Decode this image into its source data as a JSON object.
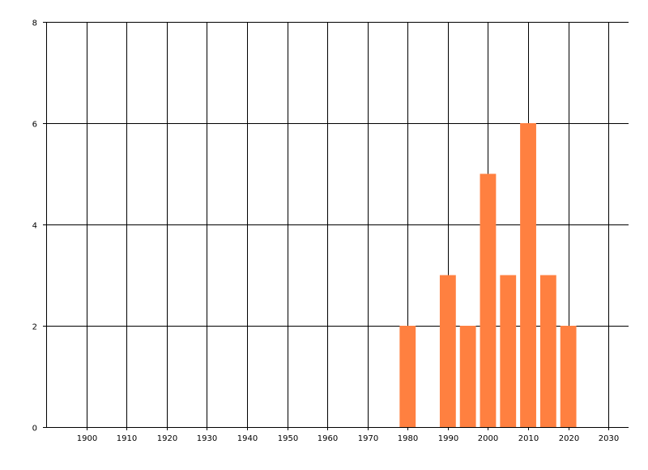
{
  "chart_data": {
    "type": "bar",
    "title": "",
    "xlabel": "",
    "ylabel": "",
    "x": [
      1980,
      1990,
      1995,
      2000,
      2005,
      2010,
      2015,
      2020
    ],
    "values": [
      2,
      3,
      2,
      5,
      3,
      6,
      3,
      2
    ],
    "bar_width_years": 4,
    "xlim": [
      1890,
      2035
    ],
    "ylim": [
      0,
      8
    ],
    "xticks": [
      1900,
      1910,
      1920,
      1930,
      1940,
      1950,
      1960,
      1970,
      1980,
      1990,
      2000,
      2010,
      2020,
      2030
    ],
    "yticks": [
      0,
      2,
      4,
      6,
      8
    ],
    "grid": true,
    "legend": "none",
    "bar_color": "#FF8040",
    "grid_color": "#000000"
  }
}
